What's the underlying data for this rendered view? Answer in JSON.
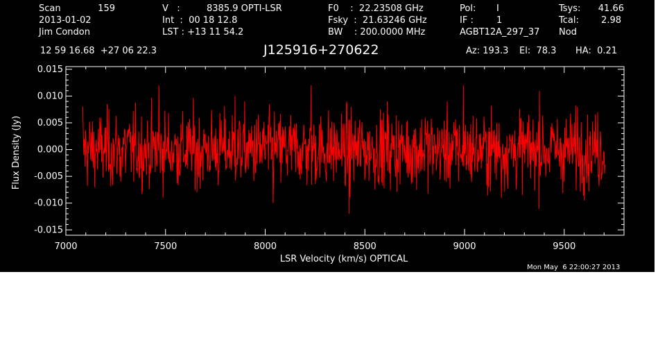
{
  "header": {
    "col1": [
      "Scan",
      "2013-01-02",
      "Jim Condon"
    ],
    "scan_value": "159",
    "col2": [
      "V   :",
      "Int  :  00 18 12.8",
      "LST : +13 11 54.2"
    ],
    "v_value": "8385.9 OPTI-LSR",
    "col3": [
      "F0    :  22.23508 GHz",
      "Fsky  :  21.63246 GHz",
      "BW    : 200.0000 MHz"
    ],
    "col4": [
      "Pol:",
      "IF :",
      "AGBT12A_297_37"
    ],
    "pol_value": "I",
    "if_value": "1",
    "col5": [
      "Tsys:",
      "Tcal:",
      "Nod"
    ],
    "tsys_value": "41.66",
    "tcal_value": "2.98",
    "coords": "12 59 16.68  +27 06 22.3",
    "source": "J125916+270622",
    "az": "Az: 193.3",
    "el": "El:  78.3",
    "ha": "HA:  0.21"
  },
  "datestamp": "Mon May  6 22:00:27 2013",
  "colors": {
    "background": "#000000",
    "foreground": "#ffffff",
    "series": "#ff0000"
  },
  "chart_data": {
    "type": "line",
    "xlabel": "LSR Velocity (km/s) OPTICAL",
    "ylabel": "Flux Density (Jy)",
    "xlim": [
      7000,
      9800
    ],
    "ylim": [
      -0.016,
      0.0155
    ],
    "x_ticks": [
      7000,
      7500,
      8000,
      8500,
      9000,
      9500
    ],
    "y_ticks": [
      0.015,
      0.01,
      0.005,
      0.0,
      -0.005,
      -0.01,
      -0.015
    ],
    "x_tick_labels": [
      "7000",
      "7500",
      "8000",
      "8500",
      "9000",
      "9500"
    ],
    "y_tick_labels": [
      "0.015",
      "0.010",
      "0.005",
      "0.000",
      "-0.005",
      "-0.010",
      "-0.015"
    ],
    "grid": false,
    "series": [
      {
        "x_start": 7085,
        "x_end": 9705,
        "sample_spacing_kms": 2.3,
        "mean": 0.0,
        "noise_rms": 0.0035,
        "peak_max": 0.0128,
        "peak_min": -0.0125,
        "representative_values": [
          0.008,
          -0.006,
          0.012,
          -0.008,
          0.01,
          -0.01,
          0.012,
          -0.012,
          0.009,
          0.006,
          0.012,
          -0.009,
          0.011
        ]
      }
    ]
  }
}
